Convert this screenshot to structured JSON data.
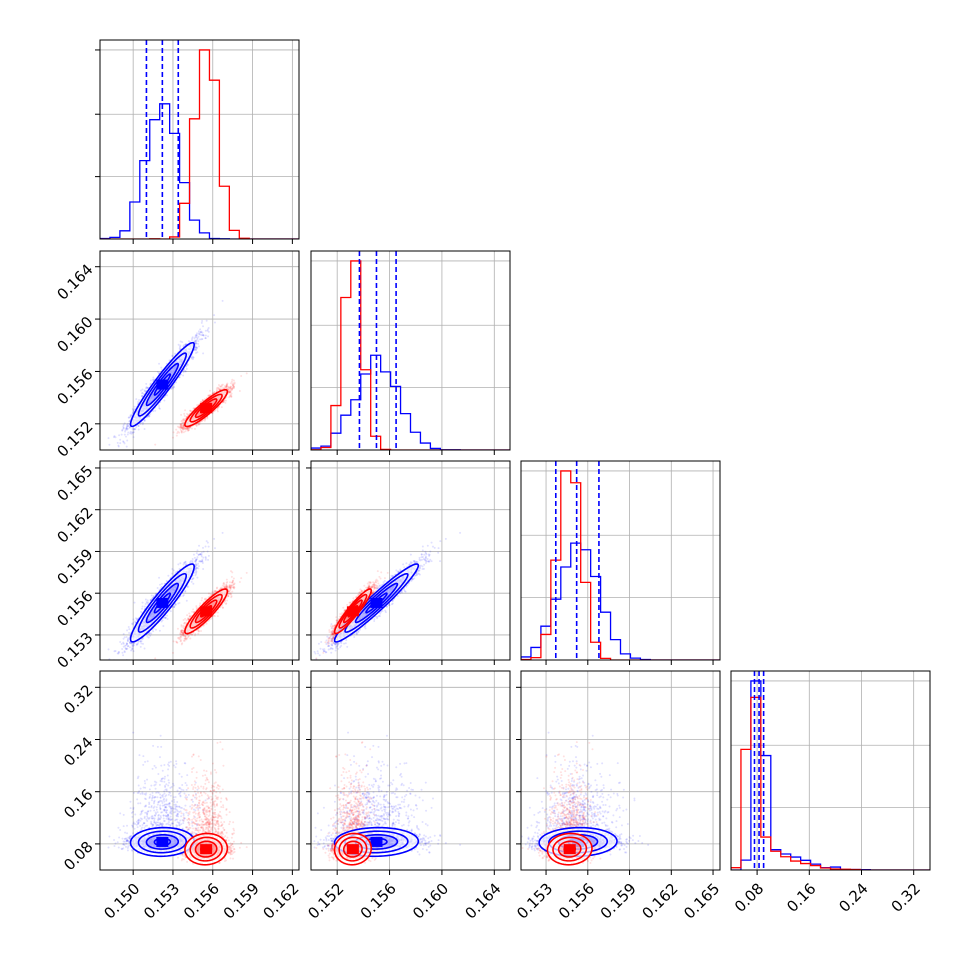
{
  "chart_data": {
    "type": "corner",
    "colors": {
      "blue": "#0000ff",
      "red": "#ff0000",
      "grid": "#b0b0b0",
      "frame": "#000000"
    },
    "grid": true,
    "params": [
      {
        "range": [
          0.1475,
          0.1625
        ],
        "ticks": [
          0.15,
          0.153,
          0.156,
          0.159,
          0.162
        ],
        "tick_labels": [
          "0.150",
          "0.153",
          "0.156",
          "0.159",
          "0.162"
        ]
      },
      {
        "range": [
          0.15,
          0.1652
        ],
        "ticks": [
          0.152,
          0.156,
          0.16,
          0.164
        ],
        "tick_labels": [
          "0.152",
          "0.156",
          "0.160",
          "0.164"
        ]
      },
      {
        "range": [
          0.1512,
          0.1655
        ],
        "ticks": [
          0.153,
          0.156,
          0.159,
          0.162,
          0.165
        ],
        "tick_labels": [
          "0.153",
          "0.156",
          "0.159",
          "0.162",
          "0.165"
        ]
      },
      {
        "range": [
          0.04,
          0.345
        ],
        "ticks": [
          0.08,
          0.16,
          0.24,
          0.32
        ],
        "tick_labels": [
          "0.08",
          "0.16",
          "0.24",
          "0.32"
        ]
      }
    ],
    "series": [
      {
        "color": "blue",
        "mean": [
          0.1522,
          0.155,
          0.1553,
          0.083
        ],
        "std": [
          0.0012,
          0.0016,
          0.0014,
          0.011
        ],
        "corr": [
          [
            1,
            0.95,
            0.93,
            0.05
          ],
          [
            0.95,
            1,
            0.96,
            0.05
          ],
          [
            0.93,
            0.96,
            1,
            0.05
          ],
          [
            0.05,
            0.05,
            0.05,
            1
          ]
        ],
        "quantiles": [
          [
            0.151,
            0.1522,
            0.1534
          ],
          [
            0.1537,
            0.155,
            0.1565
          ],
          [
            0.1537,
            0.1552,
            0.1568
          ],
          [
            0.076,
            0.083,
            0.09
          ]
        ]
      },
      {
        "color": "red",
        "mean": [
          0.1555,
          0.1532,
          0.1547,
          0.072
        ],
        "std": [
          0.0008,
          0.0007,
          0.0008,
          0.012
        ],
        "corr": [
          [
            1,
            0.9,
            0.9,
            0.05
          ],
          [
            0.9,
            1,
            0.93,
            0.05
          ],
          [
            0.9,
            0.93,
            1,
            0.05
          ],
          [
            0.05,
            0.05,
            0.05,
            1
          ]
        ]
      }
    ]
  }
}
